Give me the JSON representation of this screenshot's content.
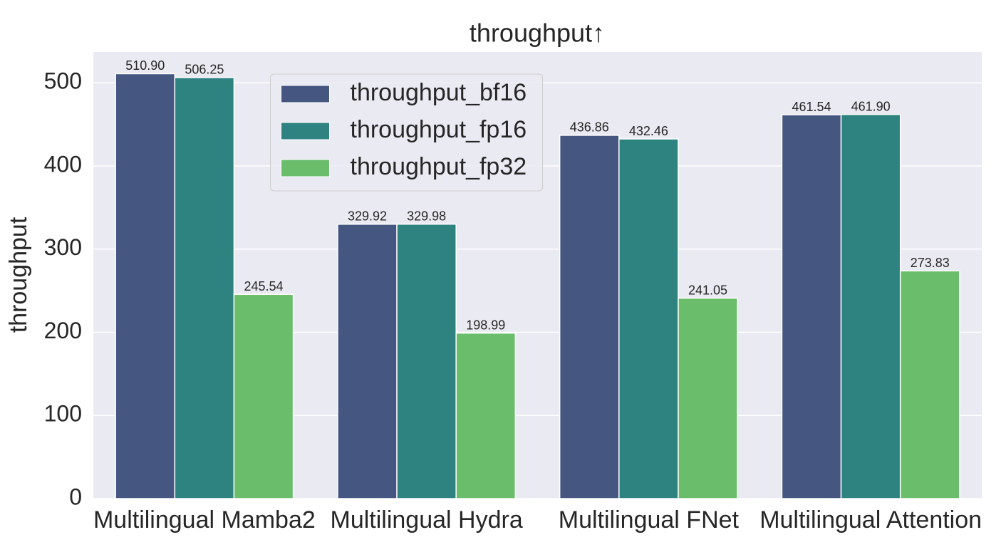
{
  "chart_data": {
    "type": "bar",
    "title": "throughput↑",
    "ylabel": "throughput",
    "categories": [
      "Multilingual Mamba2",
      "Multilingual Hydra",
      "Multilingual FNet",
      "Multilingual Attention"
    ],
    "series": [
      {
        "name": "throughput_bf16",
        "color": "#455681",
        "values": [
          510.9,
          329.92,
          436.86,
          461.54
        ],
        "value_labels": [
          "510.90",
          "329.92",
          "436.86",
          "461.54"
        ]
      },
      {
        "name": "throughput_fp16",
        "color": "#2e8380",
        "values": [
          506.25,
          329.98,
          432.46,
          461.9
        ],
        "value_labels": [
          "506.25",
          "329.98",
          "432.46",
          "461.90"
        ]
      },
      {
        "name": "throughput_fp32",
        "color": "#6abd6b",
        "values": [
          245.54,
          198.99,
          241.05,
          273.83
        ],
        "value_labels": [
          "245.54",
          "198.99",
          "241.05",
          "273.83"
        ]
      }
    ],
    "ylim": [
      0,
      537
    ],
    "yticks": [
      0,
      100,
      200,
      300,
      400,
      500
    ],
    "grid": true,
    "legend_loc": "upper center"
  }
}
